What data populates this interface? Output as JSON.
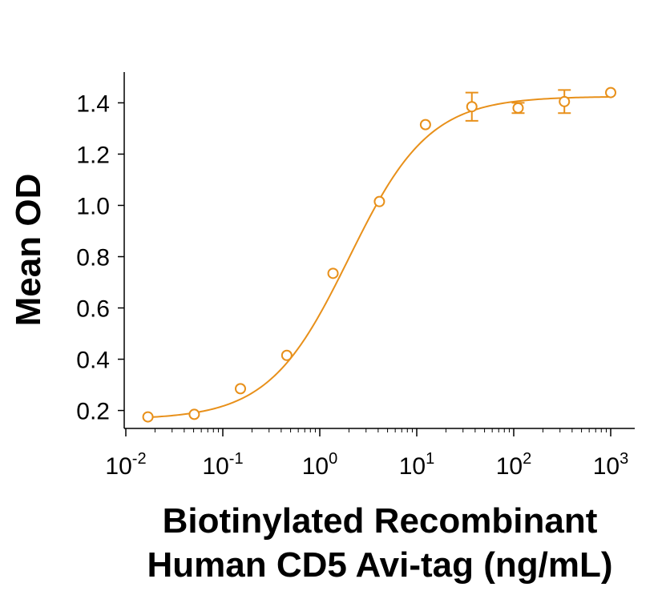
{
  "chart_data": {
    "type": "scatter",
    "title": "",
    "xlabel_lines": [
      "Biotinylated Recombinant",
      "Human CD5 Avi-tag (ng/mL)"
    ],
    "ylabel": "Mean OD",
    "x_scale": "log10",
    "xlim": [
      0.01,
      1000
    ],
    "ylim": [
      0.13,
      1.52
    ],
    "x_ticks": [
      {
        "base": "10",
        "exp": "-2",
        "value": 0.01
      },
      {
        "base": "10",
        "exp": "-1",
        "value": 0.1
      },
      {
        "base": "10",
        "exp": "0",
        "value": 1
      },
      {
        "base": "10",
        "exp": "1",
        "value": 10
      },
      {
        "base": "10",
        "exp": "2",
        "value": 100
      },
      {
        "base": "10",
        "exp": "3",
        "value": 1000
      }
    ],
    "y_ticks": [
      "0.2",
      "0.4",
      "0.6",
      "0.8",
      "1.0",
      "1.2",
      "1.4"
    ],
    "series": [
      {
        "name": "Mean OD",
        "color": "#E8901A",
        "marker": "open-circle",
        "points": [
          {
            "x": 0.0169,
            "y": 0.175,
            "err": 0
          },
          {
            "x": 0.0508,
            "y": 0.185,
            "err": 0
          },
          {
            "x": 0.152,
            "y": 0.285,
            "err": 0
          },
          {
            "x": 0.457,
            "y": 0.415,
            "err": 0
          },
          {
            "x": 1.37,
            "y": 0.735,
            "err": 0
          },
          {
            "x": 4.12,
            "y": 1.015,
            "err": 0
          },
          {
            "x": 12.3,
            "y": 1.315,
            "err": 0
          },
          {
            "x": 37.0,
            "y": 1.385,
            "err": 0.055
          },
          {
            "x": 111,
            "y": 1.38,
            "err": 0.02
          },
          {
            "x": 333,
            "y": 1.405,
            "err": 0.045
          },
          {
            "x": 1000,
            "y": 1.44,
            "err": 0
          }
        ],
        "fit": {
          "model": "4PL",
          "bottom": 0.165,
          "top": 1.425,
          "ec50": 2.0,
          "hill": 1.05
        }
      }
    ]
  }
}
